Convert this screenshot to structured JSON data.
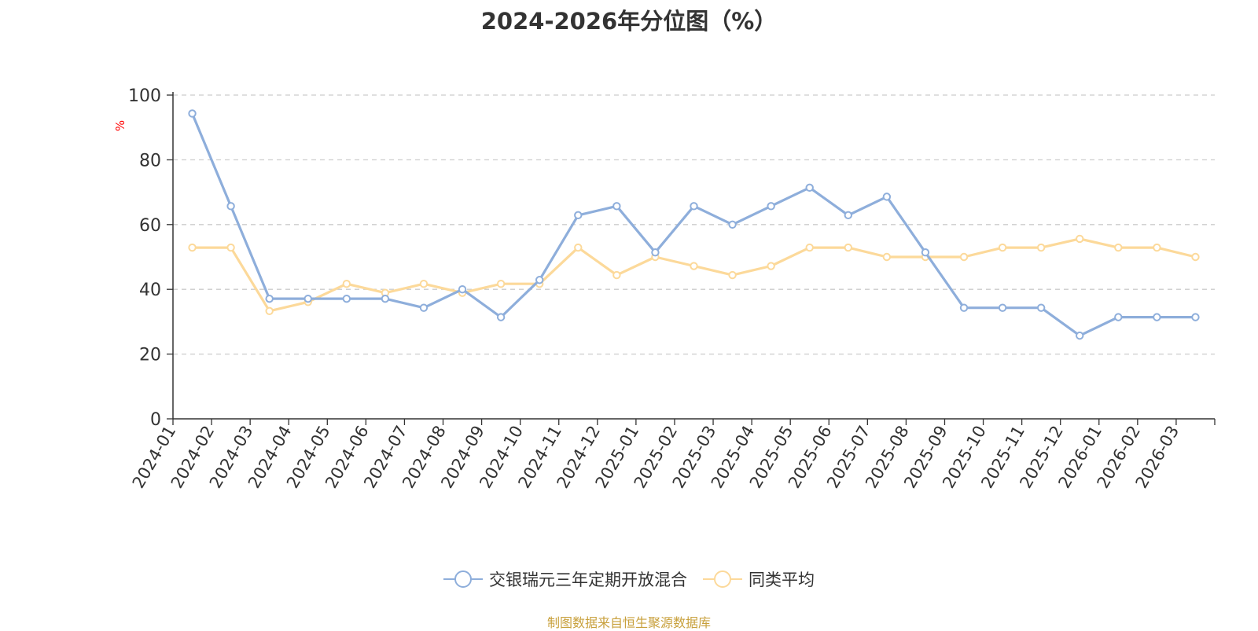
{
  "chart_data": {
    "type": "line",
    "title": "2024-2026年分位图（%）",
    "ylabel": "%",
    "xlabel": "",
    "ylim": [
      0,
      100
    ],
    "yticks": [
      0,
      20,
      40,
      60,
      80,
      100
    ],
    "grid": true,
    "legend_position": "bottom-center",
    "categories": [
      "2024-01",
      "2024-02",
      "2024-03",
      "2024-04",
      "2024-05",
      "2024-06",
      "2024-07",
      "2024-08",
      "2024-09",
      "2024-10",
      "2024-11",
      "2024-12",
      "2025-01",
      "2025-02",
      "2025-03",
      "2025-04",
      "2025-05",
      "2025-06",
      "2025-07",
      "2025-08",
      "2025-09",
      "2025-10",
      "2025-11",
      "2025-12",
      "2026-01",
      "2026-02",
      "2026-03"
    ],
    "series": [
      {
        "name": "交银瑞元三年定期开放混合",
        "color": "#8eaedb",
        "values": [
          94.3,
          65.7,
          37.1,
          37.1,
          37.1,
          37.1,
          34.3,
          40.0,
          31.4,
          42.9,
          62.9,
          65.7,
          51.4,
          65.7,
          60.0,
          65.7,
          71.4,
          62.9,
          68.6,
          51.4,
          34.3,
          34.3,
          34.3,
          25.7,
          31.4,
          31.4,
          31.4
        ]
      },
      {
        "name": "同类平均",
        "color": "#fcd99a",
        "values": [
          52.9,
          52.9,
          33.3,
          36.1,
          41.7,
          38.9,
          41.7,
          38.9,
          41.7,
          41.7,
          52.9,
          44.4,
          50.0,
          47.2,
          44.4,
          47.2,
          52.9,
          52.9,
          50.0,
          50.0,
          50.0,
          52.9,
          52.9,
          55.6,
          52.9,
          52.9,
          50.0
        ]
      }
    ]
  },
  "footer": {
    "source": "制图数据来自恒生聚源数据库"
  }
}
